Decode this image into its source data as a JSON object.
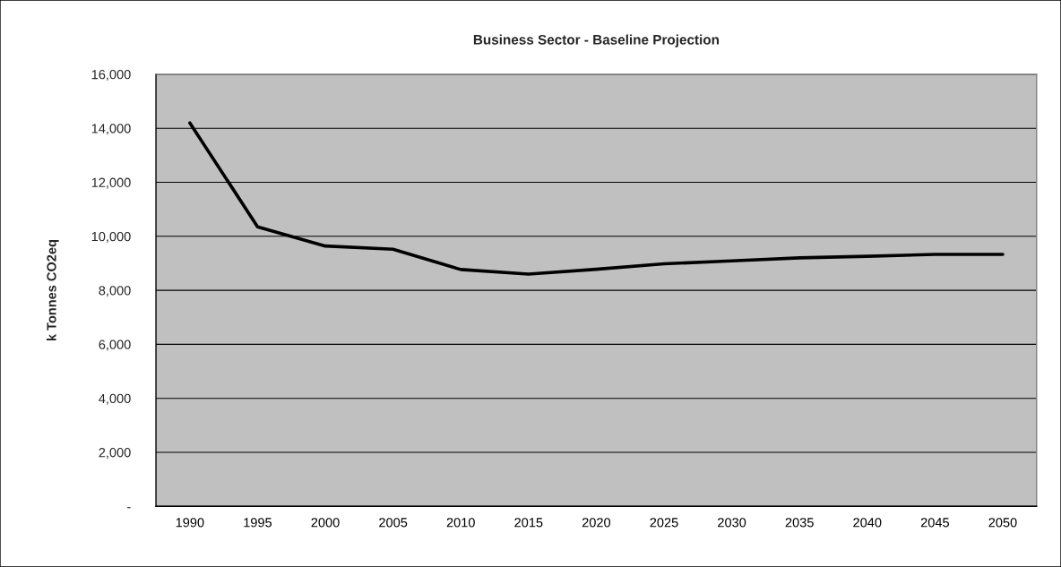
{
  "chart_data": {
    "type": "line",
    "title": "Business Sector - Baseline Projection",
    "ylabel": "k Tonnes CO2eq",
    "categories": [
      "1990",
      "1995",
      "2000",
      "2005",
      "2010",
      "2015",
      "2020",
      "2025",
      "2030",
      "2035",
      "2040",
      "2045",
      "2050"
    ],
    "series": [
      {
        "color": "#000000",
        "values": [
          14200,
          10350,
          9640,
          9520,
          8770,
          8600,
          8780,
          8980,
          9090,
          9200,
          9260,
          9330,
          9330
        ]
      }
    ],
    "ylim": [
      0,
      16000
    ],
    "yticks": [
      {
        "value": 0,
        "label": "-"
      },
      {
        "value": 2000,
        "label": "2,000"
      },
      {
        "value": 4000,
        "label": "4,000"
      },
      {
        "value": 6000,
        "label": "6,000"
      },
      {
        "value": 8000,
        "label": "8,000"
      },
      {
        "value": 10000,
        "label": "10,000"
      },
      {
        "value": 12000,
        "label": "12,000"
      },
      {
        "value": 14000,
        "label": "14,000"
      },
      {
        "value": 16000,
        "label": "16,000"
      }
    ],
    "grid": "y",
    "marker": "none",
    "line_style": "solid"
  }
}
